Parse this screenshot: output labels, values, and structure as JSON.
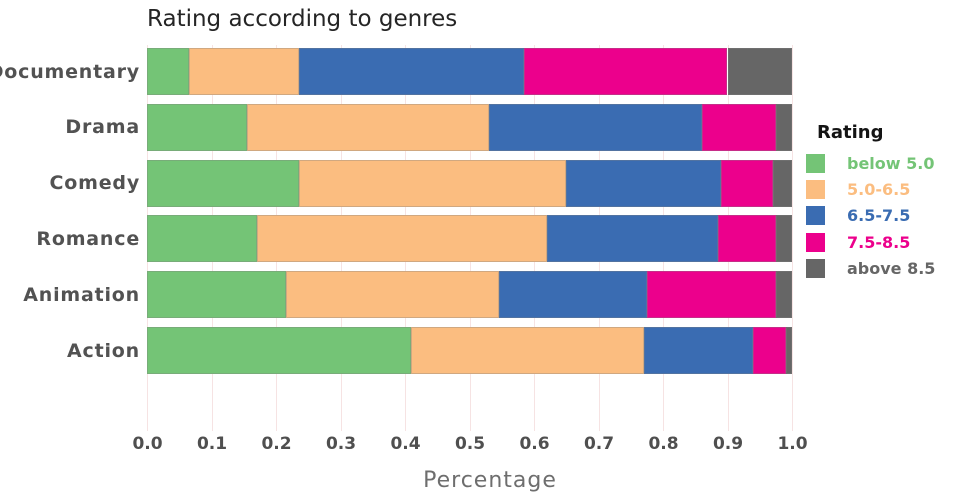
{
  "title": "Rating according to genres",
  "legend": {
    "title": "Rating"
  },
  "axis": {
    "x_title": "Percentage"
  },
  "colors": {
    "background": "#ffffff",
    "gridline": "#f6e3e3",
    "title_text": "#252525",
    "axis_tick_text": "#4f4f4f",
    "y_label_text": "#525252",
    "axis_title_text": "#6e6e6e",
    "legend_title_text": "#141414"
  },
  "chart_data": {
    "type": "bar",
    "orientation": "horizontal",
    "stacked": true,
    "title": "Rating according to genres",
    "xlabel": "Percentage",
    "ylabel": "",
    "legend_title": "Rating",
    "legend_position": "right",
    "grid": true,
    "xlim": [
      0.0,
      1.0
    ],
    "xticks": [
      0.0,
      0.1,
      0.2,
      0.3,
      0.4,
      0.5,
      0.6,
      0.7,
      0.8,
      0.9,
      1.0
    ],
    "xtick_labels": [
      "0.0",
      "0.1",
      "0.2",
      "0.3",
      "0.4",
      "0.5",
      "0.6",
      "0.7",
      "0.8",
      "0.9",
      "1.0"
    ],
    "categories": [
      "Documentary",
      "Drama",
      "Comedy",
      "Romance",
      "Animation",
      "Action"
    ],
    "series": [
      {
        "name": "below 5.0",
        "color": "#74c476",
        "values": [
          0.065,
          0.155,
          0.235,
          0.17,
          0.215,
          0.41
        ]
      },
      {
        "name": "5.0-6.5",
        "color": "#fbbd80",
        "values": [
          0.17,
          0.375,
          0.415,
          0.45,
          0.33,
          0.36
        ]
      },
      {
        "name": "6.5-7.5",
        "color": "#3a6cb2",
        "values": [
          0.35,
          0.33,
          0.24,
          0.265,
          0.23,
          0.17
        ]
      },
      {
        "name": "7.5-8.5",
        "color": "#ec008c",
        "values": [
          0.315,
          0.115,
          0.08,
          0.09,
          0.2,
          0.05
        ]
      },
      {
        "name": "above 8.5",
        "color": "#666666",
        "values": [
          0.1,
          0.025,
          0.03,
          0.025,
          0.025,
          0.01
        ]
      }
    ]
  }
}
